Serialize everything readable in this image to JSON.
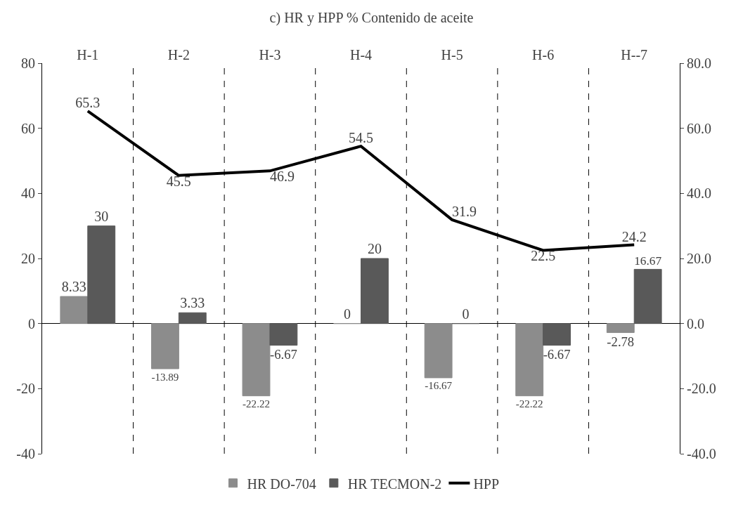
{
  "chart_data": {
    "type": "bar",
    "title": "c) HR y HPP % Contenido de aceite",
    "categories": [
      "H-1",
      "H-2",
      "H-3",
      "H-4",
      "H-5",
      "H-6",
      "H--7"
    ],
    "series": [
      {
        "name": "HR DO-704",
        "color": "#8c8c8c",
        "values": [
          8.33,
          -13.89,
          -22.22,
          0,
          -16.67,
          -22.22,
          -2.78
        ]
      },
      {
        "name": "HR TECMON-2",
        "color": "#595959",
        "values": [
          30,
          3.33,
          -6.67,
          20,
          0,
          -6.67,
          16.67
        ]
      },
      {
        "name": "HPP",
        "type": "line",
        "axis": "y2",
        "color": "#000000",
        "values": [
          65.3,
          45.5,
          46.9,
          54.5,
          31.9,
          22.5,
          24.2
        ]
      }
    ],
    "ylim": [
      -40,
      80
    ],
    "yticks": [
      -40,
      -20,
      0,
      20,
      40,
      60,
      80
    ],
    "y2lim": [
      -40,
      80
    ],
    "y2ticks": [
      {
        "value": -40,
        "label": "-40.0"
      },
      {
        "value": -20,
        "label": "-20.0"
      },
      {
        "value": 0,
        "label": "0.0"
      },
      {
        "value": 20,
        "label": "20.0"
      },
      {
        "value": 40,
        "label": "40.0"
      },
      {
        "value": 60,
        "label": "60.0"
      },
      {
        "value": 80,
        "label": "80.0"
      }
    ],
    "data_labels": true,
    "grid": "x",
    "legend": "bottom",
    "marker": "none",
    "line_style": "solid"
  }
}
